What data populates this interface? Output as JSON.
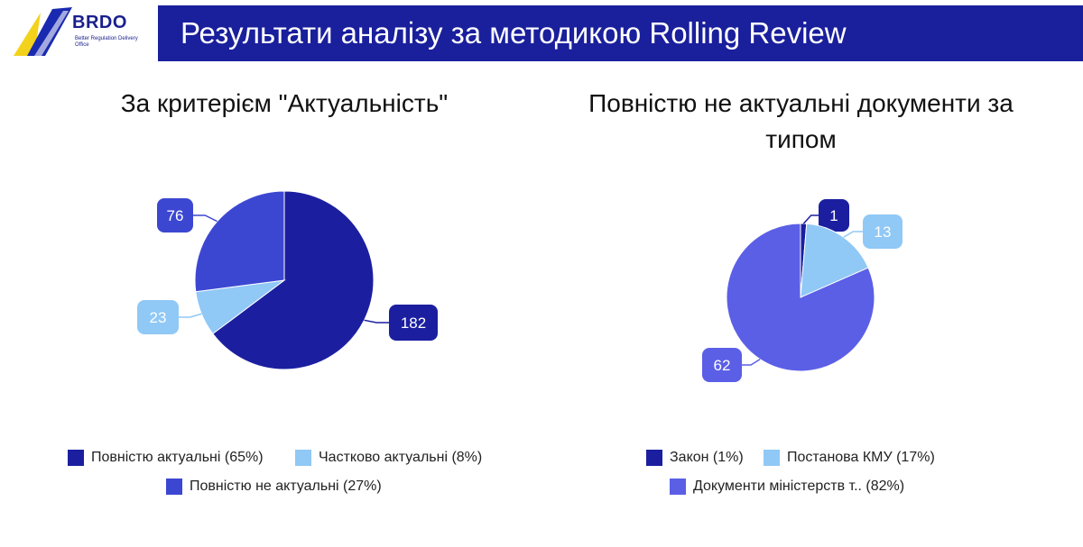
{
  "logo": {
    "name": "BRDO",
    "subtitle": "Better Regulation Delivery Office"
  },
  "header": {
    "title": "Результати аналізу за методикою Rolling Review"
  },
  "chart_data": [
    {
      "type": "pie",
      "title": "За критерієм \"Актуальність\"",
      "categories": [
        "Повністю актуальні",
        "Частково актуальні",
        "Повністю не актуальні"
      ],
      "values": [
        182,
        23,
        76
      ],
      "colors": [
        "#1b1f9f",
        "#90c8f6",
        "#3c47d1"
      ],
      "legend": [
        "Повністю актуальні (65%)",
        "Частково актуальні (8%)",
        "Повністю не актуальні (27%)"
      ],
      "data_labels": [
        "182",
        "23",
        "76"
      ],
      "legend_position": "bottom"
    },
    {
      "type": "pie",
      "title": "Повністю не актуальні документи за типом",
      "categories": [
        "Закон",
        "Постанова КМУ",
        "Документи міністерств т.."
      ],
      "values": [
        1,
        13,
        62
      ],
      "colors": [
        "#1b1f9f",
        "#90c8f6",
        "#5b5fe6"
      ],
      "legend": [
        "Закон (1%)",
        "Постанова КМУ (17%)",
        "Документи міністерств т.. (82%)"
      ],
      "data_labels": [
        "1",
        "13",
        "62"
      ],
      "legend_position": "bottom"
    }
  ]
}
